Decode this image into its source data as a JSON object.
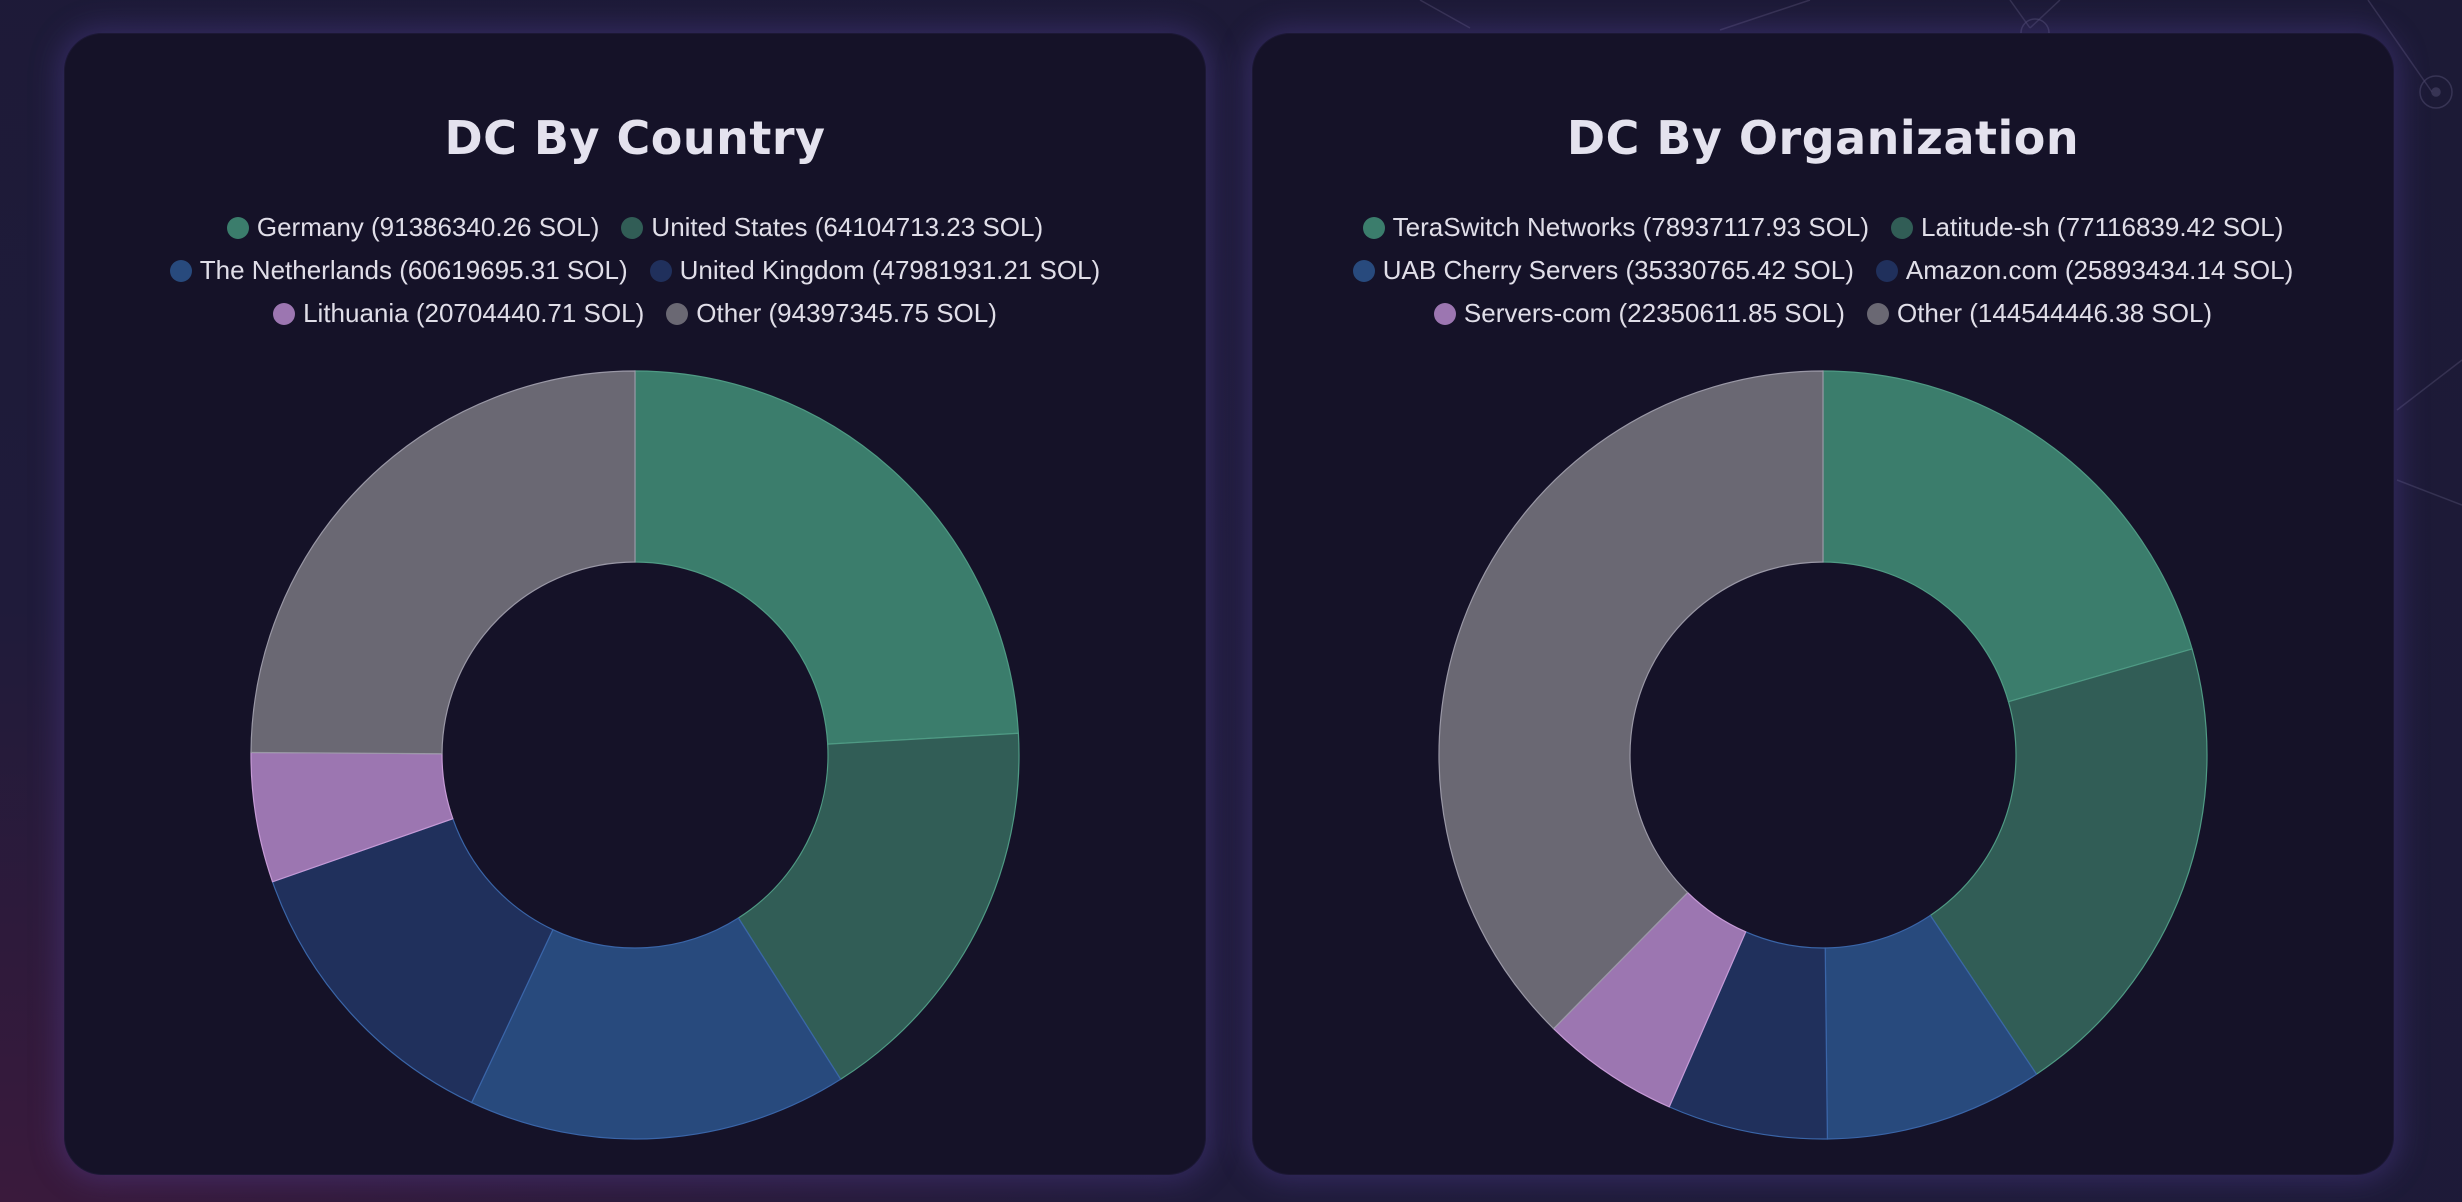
{
  "colors": {
    "green": "#3b7d6c",
    "dark_green": "#315d56",
    "blue": "#284a7d",
    "navy": "#20305c",
    "pink": "#9c76b1",
    "gray": "#6a6873",
    "green_stroke": "#4f9a84",
    "blue_stroke": "#3a65a8"
  },
  "chart_data": [
    {
      "type": "pie",
      "title": "DC By Country",
      "legend_position": "top",
      "donut": true,
      "series": [
        {
          "label": "Germany",
          "legend": "Germany (91386340.26 SOL)",
          "value": 91386340.26,
          "color": "#3b7d6c"
        },
        {
          "label": "United States",
          "legend": "United States (64104713.23 SOL)",
          "value": 64104713.23,
          "color": "#315d56"
        },
        {
          "label": "The Netherlands",
          "legend": "The Netherlands (60619695.31 SOL)",
          "value": 60619695.31,
          "color": "#284a7d"
        },
        {
          "label": "United Kingdom",
          "legend": "United Kingdom (47981931.21 SOL)",
          "value": 47981931.21,
          "color": "#20305c"
        },
        {
          "label": "Lithuania",
          "legend": "Lithuania (20704440.71 SOL)",
          "value": 20704440.71,
          "color": "#9c76b1"
        },
        {
          "label": "Other",
          "legend": "Other (94397345.75 SOL)",
          "value": 94397345.75,
          "color": "#6a6873"
        }
      ]
    },
    {
      "type": "pie",
      "title": "DC By Organization",
      "legend_position": "top",
      "donut": true,
      "series": [
        {
          "label": "TeraSwitch Networks",
          "legend": "TeraSwitch Networks (78937117.93 SOL)",
          "value": 78937117.93,
          "color": "#3b7d6c"
        },
        {
          "label": "Latitude-sh",
          "legend": "Latitude-sh (77116839.42 SOL)",
          "value": 77116839.42,
          "color": "#315d56"
        },
        {
          "label": "UAB Cherry Servers",
          "legend": "UAB Cherry Servers (35330765.42 SOL)",
          "value": 35330765.42,
          "color": "#284a7d"
        },
        {
          "label": "Amazon.com",
          "legend": "Amazon.com (25893434.14 SOL)",
          "value": 25893434.14,
          "color": "#20305c"
        },
        {
          "label": "Servers-com",
          "legend": "Servers-com (22350611.85 SOL)",
          "value": 22350611.85,
          "color": "#9c76b1"
        },
        {
          "label": "Other",
          "legend": "Other (144544446.38 SOL)",
          "value": 144544446.38,
          "color": "#6a6873"
        }
      ]
    }
  ]
}
